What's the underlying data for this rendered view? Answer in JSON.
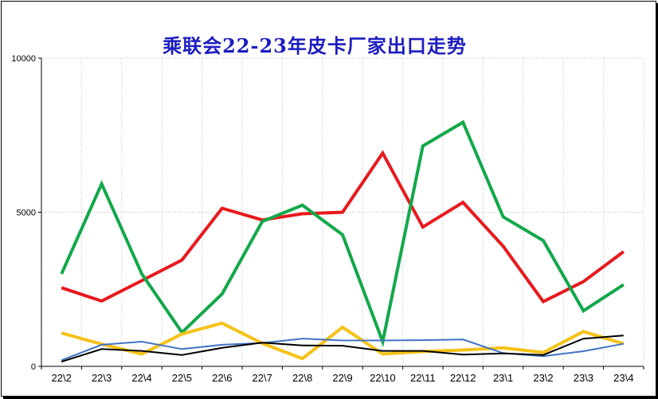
{
  "chart_data": {
    "type": "line",
    "title": "乘联会22-23年皮卡厂家出口走势",
    "xlabel": "",
    "ylabel": "",
    "ylim": [
      0,
      10000
    ],
    "yticks": [
      "0",
      "5000",
      "10000"
    ],
    "grid": true,
    "legend": "none",
    "categories": [
      "22\\2",
      "22\\3",
      "22\\4",
      "22\\5",
      "22\\6",
      "22\\7",
      "22\\8",
      "22\\9",
      "22\\10",
      "22\\11",
      "22\\12",
      "23\\1",
      "23\\2",
      "23\\3",
      "23\\4"
    ],
    "series": [
      {
        "color": "#e8191d",
        "values": [
          2550,
          2120,
          2780,
          3450,
          5130,
          4750,
          4950,
          5000,
          6920,
          4520,
          5320,
          3900,
          2100,
          2750,
          3720
        ]
      },
      {
        "color": "#12a84a",
        "values": [
          3000,
          5920,
          3000,
          1100,
          2350,
          4700,
          5230,
          4270,
          800,
          7150,
          7920,
          4850,
          4080,
          1800,
          2650
        ]
      },
      {
        "color": "#f5c218",
        "values": [
          1080,
          720,
          400,
          1050,
          1400,
          750,
          250,
          1270,
          400,
          480,
          530,
          600,
          450,
          1130,
          730
        ]
      },
      {
        "color": "#4472c4",
        "values": [
          200,
          700,
          800,
          560,
          700,
          760,
          900,
          840,
          840,
          850,
          870,
          430,
          330,
          490,
          730
        ]
      },
      {
        "color": "#000000",
        "values": [
          150,
          560,
          500,
          370,
          600,
          770,
          680,
          670,
          500,
          500,
          380,
          420,
          370,
          900,
          1000
        ]
      }
    ]
  }
}
